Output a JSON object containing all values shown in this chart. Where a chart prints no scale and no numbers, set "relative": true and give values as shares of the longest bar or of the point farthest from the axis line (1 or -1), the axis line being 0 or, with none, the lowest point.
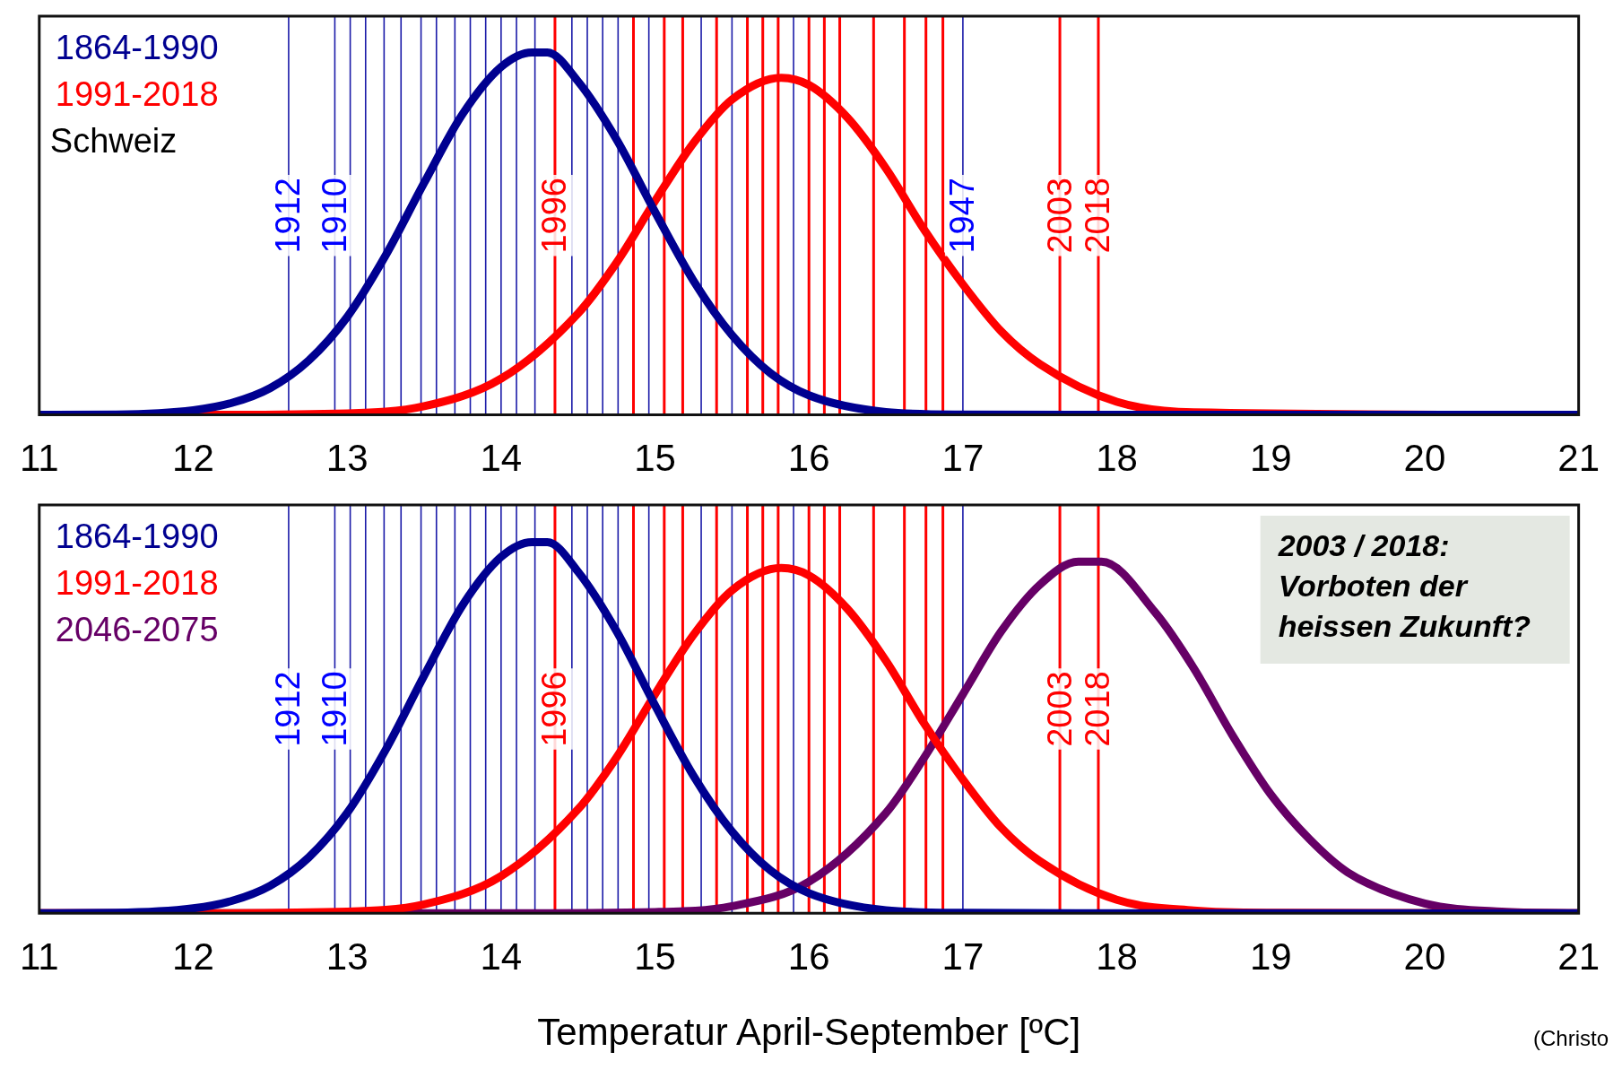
{
  "chart_data": [
    {
      "type": "line",
      "relative": true,
      "legend": "top left",
      "xlim": [
        11,
        21
      ],
      "xticks": [
        11,
        12,
        13,
        14,
        15,
        16,
        17,
        18,
        19,
        20,
        21
      ],
      "grid": false,
      "marker": "none",
      "line_style": "solid",
      "annotations": [
        "Schweiz",
        {
          "text": "1912",
          "x": 12.62
        },
        {
          "text": "1910",
          "x": 12.92
        },
        {
          "text": "1996",
          "x": 14.35
        },
        {
          "text": "1947",
          "x": 17.0
        },
        {
          "text": "2003",
          "x": 17.63
        },
        {
          "text": "2018",
          "x": 17.88
        }
      ],
      "series": [
        {
          "name": "1864-1990",
          "color": "#000090",
          "x": [
            11,
            11.5,
            12,
            12.25,
            12.5,
            12.75,
            13,
            13.25,
            13.5,
            13.75,
            14,
            14.2,
            14.3,
            14.5,
            14.75,
            15,
            15.25,
            15.5,
            15.75,
            16,
            16.5,
            17,
            18,
            21
          ],
          "values": [
            0,
            0.001,
            0.013,
            0.033,
            0.074,
            0.15,
            0.27,
            0.44,
            0.64,
            0.83,
            0.96,
            1,
            1,
            0.92,
            0.76,
            0.56,
            0.37,
            0.22,
            0.115,
            0.054,
            0.008,
            0.001,
            0,
            0
          ]
        },
        {
          "name": "1991-2018",
          "color": "#ff0000",
          "x": [
            11,
            12,
            13,
            13.5,
            14,
            14.5,
            14.75,
            15,
            15.25,
            15.5,
            15.82,
            16,
            16.25,
            16.5,
            16.75,
            17,
            17.25,
            17.5,
            18,
            18.5,
            21
          ],
          "values": [
            0,
            0,
            0.004,
            0.024,
            0.1,
            0.28,
            0.42,
            0.59,
            0.75,
            0.87,
            0.93,
            0.91,
            0.82,
            0.68,
            0.51,
            0.36,
            0.23,
            0.14,
            0.036,
            0.007,
            0
          ]
        }
      ],
      "ref_lines": [
        {
          "axis": "x",
          "value": 12.62,
          "color": "#1a1aa8"
        },
        {
          "axis": "x",
          "value": 12.92,
          "color": "#1a1aa8"
        },
        {
          "axis": "x",
          "value": 13.02,
          "color": "#1a1aa8"
        },
        {
          "axis": "x",
          "value": 13.12,
          "color": "#1a1aa8"
        },
        {
          "axis": "x",
          "value": 13.24,
          "color": "#1a1aa8"
        },
        {
          "axis": "x",
          "value": 13.35,
          "color": "#1a1aa8"
        },
        {
          "axis": "x",
          "value": 13.48,
          "color": "#1a1aa8"
        },
        {
          "axis": "x",
          "value": 13.58,
          "color": "#1a1aa8"
        },
        {
          "axis": "x",
          "value": 13.7,
          "color": "#1a1aa8"
        },
        {
          "axis": "x",
          "value": 13.8,
          "color": "#1a1aa8"
        },
        {
          "axis": "x",
          "value": 13.9,
          "color": "#1a1aa8"
        },
        {
          "axis": "x",
          "value": 14.0,
          "color": "#1a1aa8"
        },
        {
          "axis": "x",
          "value": 14.1,
          "color": "#1a1aa8"
        },
        {
          "axis": "x",
          "value": 14.22,
          "color": "#1a1aa8"
        },
        {
          "axis": "x",
          "value": 14.35,
          "color": "#ff0000"
        },
        {
          "axis": "x",
          "value": 14.46,
          "color": "#1a1aa8"
        },
        {
          "axis": "x",
          "value": 14.56,
          "color": "#1a1aa8"
        },
        {
          "axis": "x",
          "value": 14.66,
          "color": "#1a1aa8"
        },
        {
          "axis": "x",
          "value": 14.76,
          "color": "#1a1aa8"
        },
        {
          "axis": "x",
          "value": 14.86,
          "color": "#ff0000"
        },
        {
          "axis": "x",
          "value": 14.96,
          "color": "#1a1aa8"
        },
        {
          "axis": "x",
          "value": 15.06,
          "color": "#ff0000"
        },
        {
          "axis": "x",
          "value": 15.18,
          "color": "#ff0000"
        },
        {
          "axis": "x",
          "value": 15.3,
          "color": "#1a1aa8"
        },
        {
          "axis": "x",
          "value": 15.4,
          "color": "#ff0000"
        },
        {
          "axis": "x",
          "value": 15.5,
          "color": "#1a1aa8"
        },
        {
          "axis": "x",
          "value": 15.6,
          "color": "#ff0000"
        },
        {
          "axis": "x",
          "value": 15.7,
          "color": "#ff0000"
        },
        {
          "axis": "x",
          "value": 15.8,
          "color": "#ff0000"
        },
        {
          "axis": "x",
          "value": 15.9,
          "color": "#1a1aa8"
        },
        {
          "axis": "x",
          "value": 16.0,
          "color": "#ff0000"
        },
        {
          "axis": "x",
          "value": 16.1,
          "color": "#ff0000"
        },
        {
          "axis": "x",
          "value": 16.2,
          "color": "#ff0000"
        },
        {
          "axis": "x",
          "value": 16.42,
          "color": "#ff0000"
        },
        {
          "axis": "x",
          "value": 16.62,
          "color": "#ff0000"
        },
        {
          "axis": "x",
          "value": 16.76,
          "color": "#ff0000"
        },
        {
          "axis": "x",
          "value": 16.87,
          "color": "#ff0000"
        },
        {
          "axis": "x",
          "value": 17.0,
          "color": "#1a1aa8"
        },
        {
          "axis": "x",
          "value": 17.63,
          "color": "#ff0000"
        },
        {
          "axis": "x",
          "value": 17.88,
          "color": "#ff0000"
        }
      ]
    },
    {
      "type": "line",
      "relative": true,
      "legend": "top left",
      "xlim": [
        11,
        21
      ],
      "xticks": [
        11,
        12,
        13,
        14,
        15,
        16,
        17,
        18,
        19,
        20,
        21
      ],
      "grid": false,
      "marker": "none",
      "line_style": "solid",
      "xlabel": "Temperatur April-September [ºC]",
      "annotations": [
        "2003 / 2018: Vorboten der heissen Zukunft?",
        "(Christo",
        {
          "text": "1912",
          "x": 12.62
        },
        {
          "text": "1910",
          "x": 12.92
        },
        {
          "text": "1996",
          "x": 14.35
        },
        {
          "text": "2003",
          "x": 17.63
        },
        {
          "text": "2018",
          "x": 17.88
        }
      ],
      "series": [
        {
          "name": "1864-1990",
          "color": "#000090",
          "x": [
            11,
            11.5,
            12,
            12.25,
            12.5,
            12.75,
            13,
            13.25,
            13.5,
            13.75,
            14,
            14.2,
            14.3,
            14.5,
            14.75,
            15,
            15.25,
            15.5,
            15.75,
            16,
            16.5,
            17,
            18,
            21
          ],
          "values": [
            0,
            0.001,
            0.013,
            0.033,
            0.074,
            0.15,
            0.27,
            0.44,
            0.64,
            0.83,
            0.96,
            1,
            1,
            0.92,
            0.76,
            0.56,
            0.37,
            0.22,
            0.115,
            0.054,
            0.008,
            0.001,
            0,
            0
          ]
        },
        {
          "name": "1991-2018",
          "color": "#ff0000",
          "x": [
            11,
            12,
            13,
            13.5,
            14,
            14.5,
            14.75,
            15,
            15.25,
            15.5,
            15.82,
            16,
            16.25,
            16.5,
            16.75,
            17,
            17.25,
            17.5,
            18,
            18.5,
            19,
            21
          ],
          "values": [
            0,
            0,
            0.004,
            0.024,
            0.1,
            0.28,
            0.42,
            0.59,
            0.75,
            0.87,
            0.93,
            0.91,
            0.82,
            0.68,
            0.51,
            0.36,
            0.23,
            0.14,
            0.036,
            0.007,
            0.001,
            0
          ]
        },
        {
          "name": "2046-2075",
          "color": "#660066",
          "x": [
            11,
            14,
            15,
            15.5,
            16,
            16.5,
            16.75,
            17,
            17.25,
            17.5,
            17.75,
            17.9,
            18.25,
            18.5,
            18.75,
            19,
            19.25,
            19.5,
            20,
            20.5,
            21
          ],
          "values": [
            0,
            0,
            0.003,
            0.019,
            0.085,
            0.27,
            0.42,
            0.59,
            0.76,
            0.885,
            0.947,
            0.947,
            0.81,
            0.66,
            0.48,
            0.32,
            0.2,
            0.11,
            0.026,
            0.004,
            0
          ]
        }
      ],
      "ref_lines": [
        {
          "axis": "x",
          "value": 12.62,
          "color": "#1a1aa8"
        },
        {
          "axis": "x",
          "value": 12.92,
          "color": "#1a1aa8"
        },
        {
          "axis": "x",
          "value": 13.02,
          "color": "#1a1aa8"
        },
        {
          "axis": "x",
          "value": 13.12,
          "color": "#1a1aa8"
        },
        {
          "axis": "x",
          "value": 13.24,
          "color": "#1a1aa8"
        },
        {
          "axis": "x",
          "value": 13.35,
          "color": "#1a1aa8"
        },
        {
          "axis": "x",
          "value": 13.48,
          "color": "#1a1aa8"
        },
        {
          "axis": "x",
          "value": 13.58,
          "color": "#1a1aa8"
        },
        {
          "axis": "x",
          "value": 13.7,
          "color": "#1a1aa8"
        },
        {
          "axis": "x",
          "value": 13.8,
          "color": "#1a1aa8"
        },
        {
          "axis": "x",
          "value": 13.9,
          "color": "#1a1aa8"
        },
        {
          "axis": "x",
          "value": 14.0,
          "color": "#1a1aa8"
        },
        {
          "axis": "x",
          "value": 14.1,
          "color": "#1a1aa8"
        },
        {
          "axis": "x",
          "value": 14.22,
          "color": "#1a1aa8"
        },
        {
          "axis": "x",
          "value": 14.35,
          "color": "#ff0000"
        },
        {
          "axis": "x",
          "value": 14.46,
          "color": "#1a1aa8"
        },
        {
          "axis": "x",
          "value": 14.56,
          "color": "#1a1aa8"
        },
        {
          "axis": "x",
          "value": 14.66,
          "color": "#1a1aa8"
        },
        {
          "axis": "x",
          "value": 14.76,
          "color": "#1a1aa8"
        },
        {
          "axis": "x",
          "value": 14.86,
          "color": "#ff0000"
        },
        {
          "axis": "x",
          "value": 14.96,
          "color": "#1a1aa8"
        },
        {
          "axis": "x",
          "value": 15.06,
          "color": "#ff0000"
        },
        {
          "axis": "x",
          "value": 15.18,
          "color": "#ff0000"
        },
        {
          "axis": "x",
          "value": 15.3,
          "color": "#1a1aa8"
        },
        {
          "axis": "x",
          "value": 15.4,
          "color": "#ff0000"
        },
        {
          "axis": "x",
          "value": 15.5,
          "color": "#1a1aa8"
        },
        {
          "axis": "x",
          "value": 15.6,
          "color": "#ff0000"
        },
        {
          "axis": "x",
          "value": 15.7,
          "color": "#ff0000"
        },
        {
          "axis": "x",
          "value": 15.8,
          "color": "#ff0000"
        },
        {
          "axis": "x",
          "value": 15.9,
          "color": "#1a1aa8"
        },
        {
          "axis": "x",
          "value": 16.0,
          "color": "#ff0000"
        },
        {
          "axis": "x",
          "value": 16.1,
          "color": "#ff0000"
        },
        {
          "axis": "x",
          "value": 16.2,
          "color": "#ff0000"
        },
        {
          "axis": "x",
          "value": 16.42,
          "color": "#ff0000"
        },
        {
          "axis": "x",
          "value": 16.62,
          "color": "#ff0000"
        },
        {
          "axis": "x",
          "value": 16.76,
          "color": "#ff0000"
        },
        {
          "axis": "x",
          "value": 16.87,
          "color": "#ff0000"
        },
        {
          "axis": "x",
          "value": 17.0,
          "color": "#1a1aa8"
        },
        {
          "axis": "x",
          "value": 17.63,
          "color": "#ff0000"
        },
        {
          "axis": "x",
          "value": 17.88,
          "color": "#ff0000"
        }
      ]
    }
  ]
}
